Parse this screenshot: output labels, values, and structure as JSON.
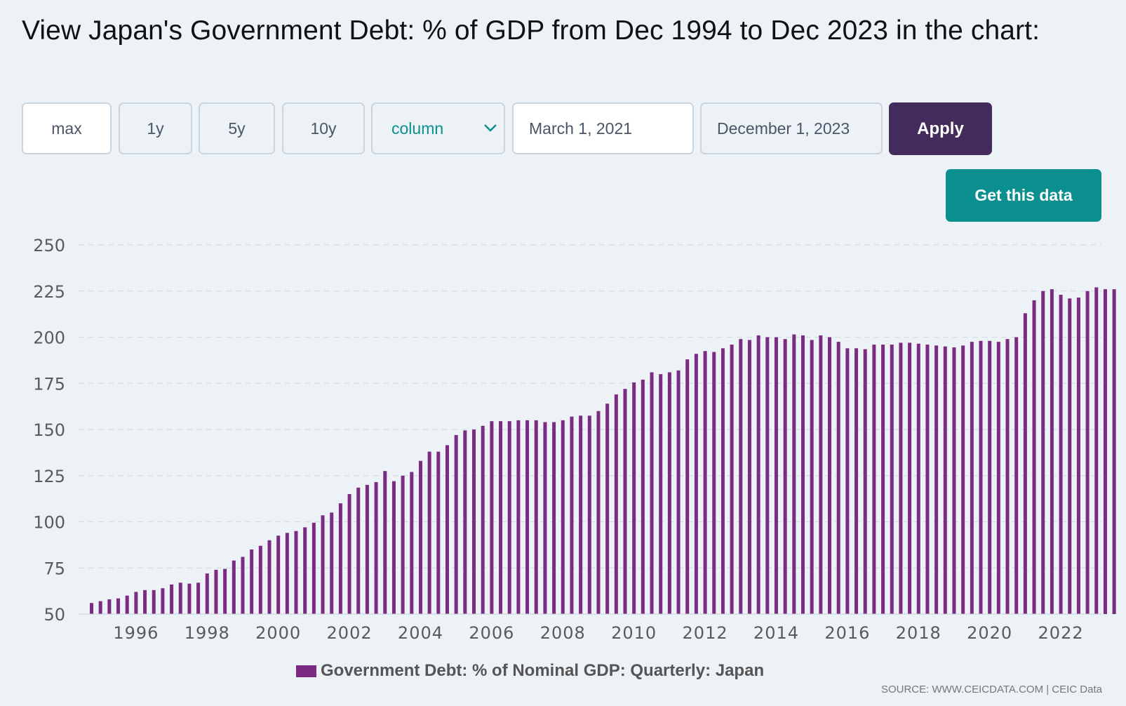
{
  "title": "View Japan's Government Debt: % of GDP from Dec 1994 to Dec 2023 in the chart:",
  "controls": {
    "range_buttons": [
      "max",
      "1y",
      "5y",
      "10y"
    ],
    "chart_type": "column",
    "start_date": "March 1, 2021",
    "end_date": "December 1, 2023",
    "apply_label": "Apply",
    "get_data_label": "Get this data"
  },
  "colors": {
    "bar": "#7b2b82",
    "apply": "#432c5c",
    "get_data": "#0b8f8f",
    "grid": "#d6dce4"
  },
  "chart_data": {
    "type": "bar",
    "title": "",
    "xlabel": "",
    "ylabel": "",
    "ylim": [
      50,
      250
    ],
    "yticks": [
      50,
      75,
      100,
      125,
      150,
      175,
      200,
      225,
      250
    ],
    "xticks": [
      1996,
      1998,
      2000,
      2002,
      2004,
      2006,
      2008,
      2010,
      2012,
      2014,
      2016,
      2018,
      2020,
      2022
    ],
    "x_start": "1994-12",
    "frequency": "quarterly",
    "series": [
      {
        "name": "Government Debt: % of Nominal GDP: Quarterly: Japan",
        "values": [
          56,
          57,
          58,
          58.5,
          60,
          62,
          63,
          63,
          64,
          66,
          67,
          66.5,
          67,
          72,
          74,
          74.5,
          79,
          81,
          85,
          87,
          90,
          92.5,
          94,
          95,
          97,
          99.5,
          103.5,
          105,
          110,
          115,
          118.5,
          120,
          121.5,
          127.5,
          122,
          125,
          127,
          133,
          138,
          138,
          141.5,
          147,
          149.5,
          150,
          152,
          154.5,
          154.5,
          154.5,
          155,
          155,
          155,
          154,
          154,
          155,
          157,
          157.5,
          157.5,
          160,
          164,
          169,
          172,
          175.5,
          177,
          181,
          180,
          181,
          182,
          188,
          191,
          192.5,
          192,
          194,
          196,
          199,
          198.5,
          201,
          200,
          200,
          199,
          201.5,
          201,
          198.5,
          201,
          200,
          197.5,
          194,
          194,
          193.5,
          196,
          196,
          196,
          197,
          197,
          196.5,
          196,
          195.5,
          195,
          194.5,
          195.5,
          197.5,
          198,
          198,
          197.5,
          199,
          200,
          213,
          220,
          225,
          226,
          223,
          221,
          221.5,
          225,
          227,
          226,
          226
        ]
      }
    ],
    "legend": "Government Debt: % of Nominal GDP: Quarterly: Japan",
    "source": "SOURCE: WWW.CEICDATA.COM | CEIC Data"
  }
}
